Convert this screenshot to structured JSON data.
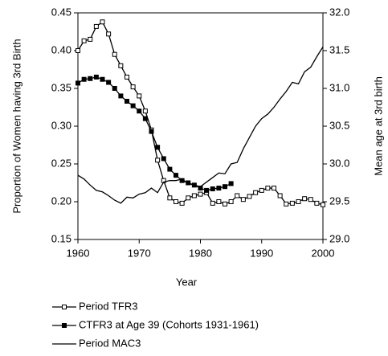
{
  "chart_data": {
    "type": "line",
    "x_label": "Year",
    "y_label": "Proportion of Women having 3rd Birth",
    "y2_label": "Mean age at 3rd birth",
    "x": [
      1960,
      1961,
      1962,
      1963,
      1964,
      1965,
      1966,
      1967,
      1968,
      1969,
      1970,
      1971,
      1972,
      1973,
      1974,
      1975,
      1976,
      1977,
      1978,
      1979,
      1980,
      1981,
      1982,
      1983,
      1984,
      1985,
      1986,
      1987,
      1988,
      1989,
      1990,
      1991,
      1992,
      1993,
      1994,
      1995,
      1996,
      1997,
      1998,
      1999,
      2000
    ],
    "xlim": [
      1960,
      2000
    ],
    "xticks": [
      1960,
      1970,
      1980,
      1990,
      2000
    ],
    "ylim": [
      0.15,
      0.45
    ],
    "yticks": [
      {
        "value": 0.15,
        "label": "0.15"
      },
      {
        "value": 0.2,
        "label": "0.20"
      },
      {
        "value": 0.25,
        "label": "0.25"
      },
      {
        "value": 0.3,
        "label": "0.30"
      },
      {
        "value": 0.35,
        "label": "0.35"
      },
      {
        "value": 0.4,
        "label": "0.40"
      },
      {
        "value": 0.45,
        "label": "0.45"
      }
    ],
    "y2lim": [
      29,
      32
    ],
    "y2ticks": [
      {
        "value": 29,
        "label": "29.0"
      },
      {
        "value": 29.5,
        "label": "29.5"
      },
      {
        "value": 30,
        "label": "30.0"
      },
      {
        "value": 30.5,
        "label": "30.5"
      },
      {
        "value": 31,
        "label": "31.0"
      },
      {
        "value": 31.5,
        "label": "31.5"
      },
      {
        "value": 32,
        "label": "32.0"
      }
    ],
    "series": [
      {
        "name": "Period TFR3",
        "color": "#000000",
        "marker": "open-square",
        "values": [
          0.4,
          0.413,
          0.415,
          0.432,
          0.438,
          0.422,
          0.395,
          0.38,
          0.365,
          0.352,
          0.34,
          0.32,
          0.295,
          0.255,
          0.228,
          0.205,
          0.2,
          0.198,
          0.205,
          0.208,
          0.21,
          0.212,
          0.198,
          0.2,
          0.197,
          0.2,
          0.208,
          0.203,
          0.207,
          0.212,
          0.215,
          0.218,
          0.218,
          0.208,
          0.197,
          0.198,
          0.2,
          0.204,
          0.203,
          0.198,
          0.196
        ]
      },
      {
        "name": "CTFR3 at Age 39 (Cohorts 1931-1961)",
        "color": "#000000",
        "marker": "filled-square",
        "values": [
          0.357,
          0.362,
          0.363,
          0.365,
          0.362,
          0.358,
          0.35,
          0.34,
          0.333,
          0.327,
          0.32,
          0.31,
          0.293,
          0.272,
          0.257,
          0.243,
          0.235,
          0.228,
          0.225,
          0.222,
          0.218,
          0.215,
          0.217,
          0.218,
          0.22,
          0.224,
          null,
          null,
          null,
          null,
          null,
          null,
          null,
          null,
          null,
          null,
          null,
          null,
          null,
          null,
          null
        ]
      },
      {
        "name": "Period MAC3",
        "color": "#000000",
        "marker": "none",
        "axis": "y2",
        "values": [
          29.85,
          29.8,
          29.72,
          29.65,
          29.63,
          29.58,
          29.52,
          29.48,
          29.56,
          29.55,
          29.6,
          29.62,
          29.68,
          29.62,
          29.76,
          29.78,
          29.78,
          29.8,
          29.74,
          29.72,
          29.7,
          29.76,
          29.82,
          29.88,
          29.87,
          30.0,
          30.02,
          30.2,
          30.35,
          30.5,
          30.6,
          30.66,
          30.75,
          30.86,
          30.96,
          31.08,
          31.06,
          31.22,
          31.28,
          31.42,
          31.55
        ]
      }
    ]
  }
}
